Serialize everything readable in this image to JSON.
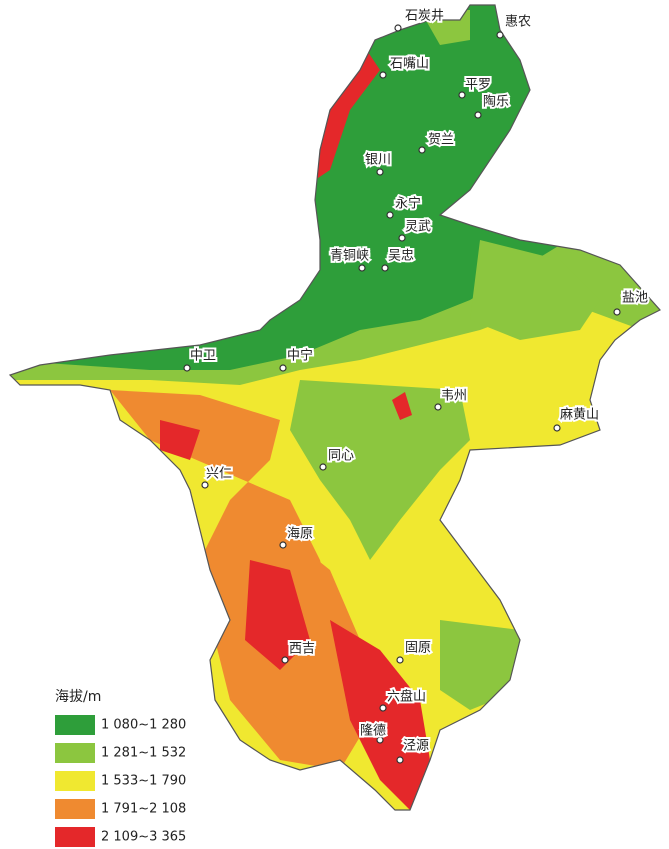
{
  "legend": {
    "title": "海拔/m",
    "items": [
      {
        "label": "1 080~1 280",
        "color": "#2e9e3a"
      },
      {
        "label": "1 281~1 532",
        "color": "#8cc63f"
      },
      {
        "label": "1 533~1 790",
        "color": "#f0e830"
      },
      {
        "label": "1 791~2 108",
        "color": "#ef8a30"
      },
      {
        "label": "2 109~3 365",
        "color": "#e4282a"
      }
    ]
  },
  "places": [
    "石炭井",
    "惠农",
    "石嘴山",
    "平罗",
    "陶乐",
    "贺兰",
    "银川",
    "永宁",
    "灵武",
    "青铜峡",
    "吴忠",
    "盐池",
    "中卫",
    "中宁",
    "韦州",
    "麻黄山",
    "同心",
    "兴仁",
    "海原",
    "西吉",
    "固原",
    "六盘山",
    "隆德",
    "泾源"
  ]
}
